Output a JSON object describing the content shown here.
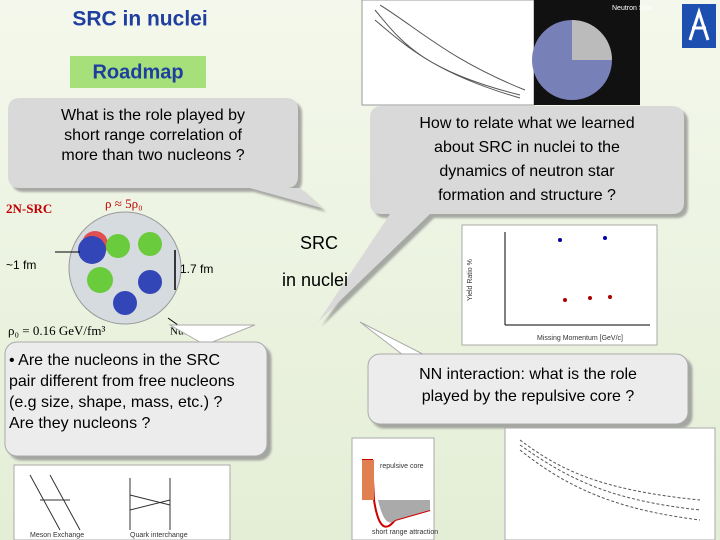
{
  "header": {
    "title": "SRC in nuclei",
    "subtitle": "Roadmap"
  },
  "callouts": [
    {
      "lines": [
        "What is the role played by",
        "short range correlation of",
        "more than two nucleons ?"
      ]
    },
    {
      "lines": [
        "How to relate what we learned",
        "about SRC in nuclei to the",
        "dynamics of neutron star",
        "formation and structure ?"
      ]
    },
    {
      "lines": [
        "• Are the nucleons in the SRC",
        "pair different from free nucleons",
        "(e.g size, shape, mass, etc.) ?",
        "Are they nucleons ?"
      ]
    },
    {
      "lines": [
        "NN  interaction: what is the role",
        "played by the repulsive core ?"
      ]
    }
  ],
  "center": {
    "line1": "SRC",
    "line2": "in nuclei"
  },
  "diagram": {
    "label_src": "2N-SRC",
    "density": "ρ ≈ 5ρ₀",
    "distance_short": "~1 fm",
    "distance_long": "1.7 fm",
    "density_norm": "ρ₀ = 0.16 GeV/fm³",
    "nucleons": "Nucleons"
  },
  "images": {
    "neutron_star": "Neutron Star",
    "yield_axis": "Yield Ratio %",
    "momentum_axis": "Missing Momentum [GeV/c]",
    "repulsive": "repulsive core",
    "attraction": "short range attraction",
    "meson": "Meson Exchange",
    "quark": "Quark interchange"
  }
}
